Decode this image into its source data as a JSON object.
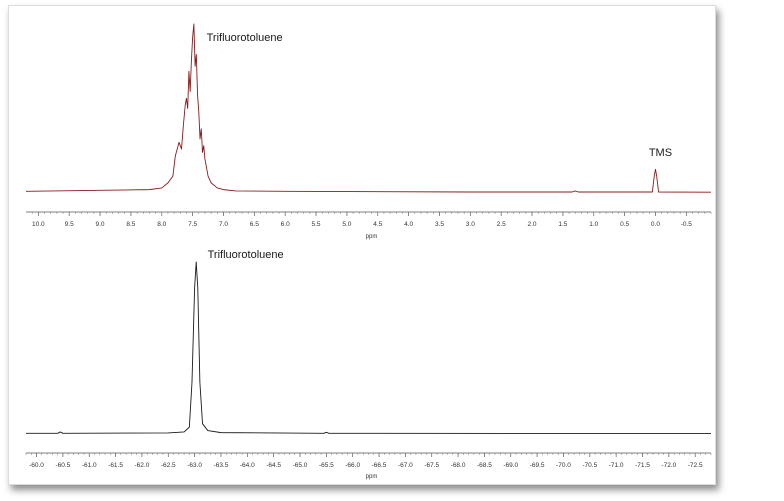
{
  "chart_data": [
    {
      "type": "line",
      "xlabel": "ppm",
      "xlim": [
        10.2,
        -0.9
      ],
      "x_reversed": true,
      "x_ticks": [
        10.0,
        9.5,
        9.0,
        8.5,
        8.0,
        7.5,
        7.0,
        6.5,
        6.0,
        5.5,
        5.0,
        4.5,
        4.0,
        3.5,
        3.0,
        2.5,
        2.0,
        1.5,
        1.0,
        0.5,
        0.0,
        -0.5
      ],
      "x_tick_labels": [
        "10.0",
        "9.5",
        "9.0",
        "8.5",
        "8.0",
        "7.5",
        "7.0",
        "6.5",
        "6.0",
        "5.5",
        "5.0",
        "4.5",
        "4.0",
        "3.5",
        "3.0",
        "2.5",
        "2.0",
        "1.5",
        "1.0",
        "0.5",
        "0.0",
        "-0.5"
      ],
      "color": "#8b1a1a",
      "grid": false,
      "y_axis_shown": false,
      "series": [
        {
          "x": [
            10.2,
            8.2,
            8.0,
            7.9,
            7.82,
            7.78,
            7.72,
            7.68,
            7.65,
            7.62,
            7.6,
            7.58,
            7.56,
            7.54,
            7.52,
            7.5,
            7.48,
            7.46,
            7.44,
            7.42,
            7.4,
            7.38,
            7.36,
            7.34,
            7.32,
            7.3,
            7.28,
            7.25,
            7.2,
            7.1,
            7.0,
            6.8,
            6.0,
            3.0,
            1.35,
            1.3,
            1.25,
            0.05,
            0.02,
            0.0,
            -0.02,
            -0.05,
            -0.9
          ],
          "y": [
            0.01,
            0.02,
            0.03,
            0.06,
            0.1,
            0.22,
            0.3,
            0.26,
            0.4,
            0.52,
            0.56,
            0.5,
            0.72,
            0.6,
            0.78,
            0.92,
            1.0,
            0.75,
            0.82,
            0.58,
            0.48,
            0.32,
            0.38,
            0.24,
            0.28,
            0.2,
            0.16,
            0.1,
            0.06,
            0.03,
            0.02,
            0.012,
            0.01,
            0.006,
            0.006,
            0.012,
            0.006,
            0.006,
            0.1,
            0.14,
            0.1,
            0.006,
            0.005
          ]
        }
      ],
      "annotations": [
        {
          "text": "Trifluorotoluene",
          "x": 7.5
        },
        {
          "text": "TMS",
          "x": 0.0
        }
      ]
    },
    {
      "type": "line",
      "xlabel": "ppm",
      "xlim": [
        -59.8,
        -72.8
      ],
      "x_reversed": true,
      "x_ticks": [
        -60.0,
        -60.5,
        -61.0,
        -61.5,
        -62.0,
        -62.5,
        -63.0,
        -63.5,
        -64.0,
        -64.5,
        -65.0,
        -65.5,
        -66.0,
        -66.5,
        -67.0,
        -67.5,
        -68.0,
        -68.5,
        -69.0,
        -69.5,
        -70.0,
        -70.5,
        -71.0,
        -71.5,
        -72.0,
        -72.5
      ],
      "x_tick_labels": [
        "-60.0",
        "-60.5",
        "-61.0",
        "-61.5",
        "-62.0",
        "-62.5",
        "-63.0",
        "-63.5",
        "-64.0",
        "-64.5",
        "-65.0",
        "-65.5",
        "-66.0",
        "-66.5",
        "-67.0",
        "-67.5",
        "-68.0",
        "-68.5",
        "-69.0",
        "-69.5",
        "-70.0",
        "-70.5",
        "-71.0",
        "-71.5",
        "-72.0",
        "-72.5"
      ],
      "color": "#1a1a1a",
      "grid": false,
      "y_axis_shown": false,
      "series": [
        {
          "x": [
            -59.8,
            -60.4,
            -60.45,
            -60.5,
            -62.5,
            -62.8,
            -62.9,
            -62.95,
            -63.0,
            -63.03,
            -63.06,
            -63.1,
            -63.15,
            -63.25,
            -63.5,
            -65.45,
            -65.5,
            -65.55,
            -72.8
          ],
          "y": [
            0.004,
            0.004,
            0.012,
            0.004,
            0.006,
            0.012,
            0.04,
            0.3,
            0.85,
            1.0,
            0.85,
            0.3,
            0.06,
            0.02,
            0.008,
            0.004,
            0.01,
            0.004,
            0.003
          ]
        }
      ],
      "annotations": [
        {
          "text": "Trifluorotoluene",
          "x": -63.0
        }
      ]
    }
  ]
}
